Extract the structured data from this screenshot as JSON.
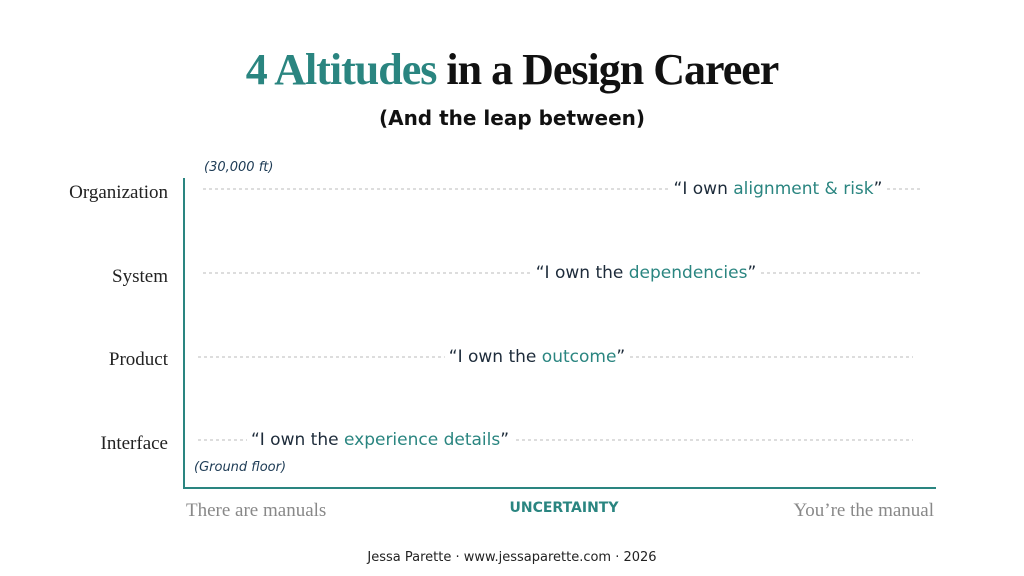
{
  "header": {
    "title_highlight": "4 Altitudes",
    "title_rest": "in a Design Career",
    "subtitle": "(And the leap between)"
  },
  "diagram": {
    "top_note": "(30,000 ft)",
    "bottom_note": "(Ground floor)",
    "levels": [
      {
        "label": "Organization",
        "quote_start": "“I own ",
        "quote_highlight": "alignment & risk",
        "quote_end": "”"
      },
      {
        "label": "System",
        "quote_start": "“I own the ",
        "quote_highlight": "dependencies",
        "quote_end": "”"
      },
      {
        "label": "Product",
        "quote_start": "“I own the ",
        "quote_highlight": "outcome",
        "quote_end": "”"
      },
      {
        "label": "Interface",
        "quote_start": "“I own the ",
        "quote_highlight": "experience details",
        "quote_end": "”"
      }
    ],
    "x_axis": {
      "left": "There are manuals",
      "title": "UNCERTAINTY",
      "right": "You’re the manual"
    }
  },
  "footer": "Jessa Parette · www.jessaparette.com · 2026"
}
